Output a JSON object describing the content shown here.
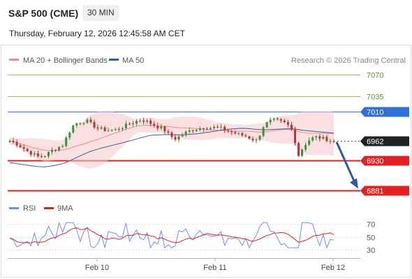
{
  "header": {
    "title": "S&P 500 (CME)",
    "timeframe": "30 MIN",
    "datetime": "Thursday, February 12, 2026 12:45:58 AM CET"
  },
  "legend": {
    "ma20_label": "MA 20 + Bollinger Bands",
    "ma50_label": "MA 50",
    "ma20_color": "#f08a8a",
    "ma50_color": "#34609c",
    "credit": "Research © 2026 Trading Central"
  },
  "rsi_legend": {
    "rsi_label": "RSI",
    "ma_label": "9MA",
    "rsi_color": "#6a8fe8",
    "ma_color": "#e02020"
  },
  "colors": {
    "up": "#3e8f3e",
    "down": "#c03030",
    "resistance_green": "#8cc25a",
    "pivot_blue": "#2e6fd8",
    "support_red": "#e52020",
    "current": "#222222",
    "arrow": "#2c5aa0"
  },
  "chart_data": [
    {
      "type": "candlestick",
      "x_ticks": [
        "Feb 10",
        "Feb 11",
        "Feb 12"
      ],
      "ylim": [
        6870,
        7085
      ],
      "levels": [
        {
          "value": 7070,
          "label": "7070",
          "kind": "resistance"
        },
        {
          "value": 7035,
          "label": "7035",
          "kind": "resistance"
        },
        {
          "value": 7010,
          "label": "7010",
          "kind": "pivot"
        },
        {
          "value": 6962,
          "label": "6962",
          "kind": "current"
        },
        {
          "value": 6930,
          "label": "6930",
          "kind": "support"
        },
        {
          "value": 6881,
          "label": "6881",
          "kind": "support"
        }
      ],
      "forecast": {
        "from": 6960,
        "to": 6885
      },
      "price_path": [
        6962,
        6958,
        6952,
        6945,
        6940,
        6935,
        6938,
        6945,
        6950,
        6955,
        6975,
        6990,
        6992,
        6995,
        6988,
        6982,
        6980,
        6979,
        6980,
        6984,
        6988,
        6992,
        6996,
        6995,
        6990,
        6985,
        6982,
        6972,
        6965,
        6970,
        6976,
        6980,
        6982,
        6984,
        6983,
        6984,
        6982,
        6978,
        6975,
        6972,
        6970,
        6965,
        6962,
        6985,
        6994,
        6996,
        6993,
        6990,
        6978,
        6938,
        6955,
        6965,
        6968,
        6966,
        6964,
        6960
      ]
    },
    {
      "type": "line",
      "title": "RSI",
      "series": [
        {
          "name": "RSI"
        },
        {
          "name": "9MA"
        }
      ],
      "y_ticks": [
        70,
        50,
        30
      ],
      "ylim": [
        20,
        80
      ]
    }
  ]
}
